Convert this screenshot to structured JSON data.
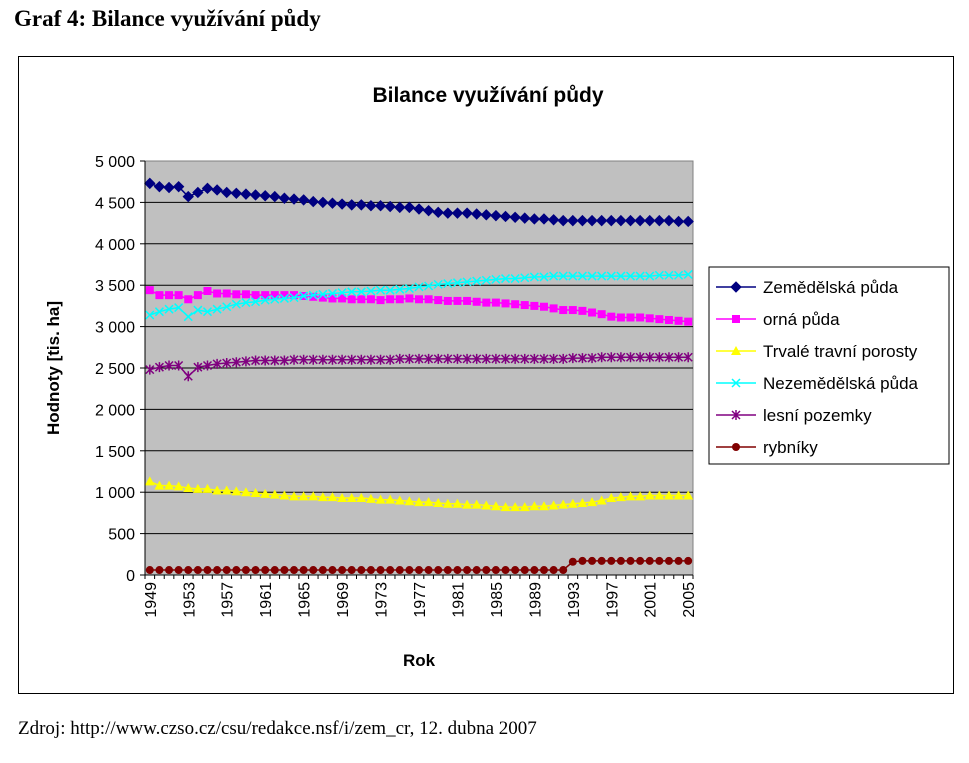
{
  "heading": "Graf 4: Bilance využívání půdy",
  "source": "Zdroj: http://www.czso.cz/csu/redakce.nsf/i/zem_cr, 12. dubna 2007",
  "chart_data": {
    "type": "line",
    "title": "Bilance využívání půdy",
    "xlabel": "Rok",
    "ylabel": "Hodnoty [tis. ha]",
    "ylim": [
      0,
      5000
    ],
    "ytick_values": [
      0,
      500,
      1000,
      1500,
      2000,
      2500,
      3000,
      3500,
      4000,
      4500,
      5000
    ],
    "ytick_labels": [
      "0",
      "500",
      "1 000",
      "1 500",
      "2 000",
      "2 500",
      "3 000",
      "3 500",
      "4 000",
      "4 500",
      "5 000"
    ],
    "x": [
      1949,
      1950,
      1951,
      1952,
      1953,
      1954,
      1955,
      1956,
      1957,
      1958,
      1959,
      1960,
      1961,
      1962,
      1963,
      1964,
      1965,
      1966,
      1967,
      1968,
      1969,
      1970,
      1971,
      1972,
      1973,
      1974,
      1975,
      1976,
      1977,
      1978,
      1979,
      1980,
      1981,
      1982,
      1983,
      1984,
      1985,
      1986,
      1987,
      1988,
      1989,
      1990,
      1991,
      1992,
      1993,
      1994,
      1995,
      1996,
      1997,
      1998,
      1999,
      2000,
      2001,
      2002,
      2003,
      2004,
      2005
    ],
    "xtick_labels": [
      "1949",
      "1953",
      "1957",
      "1961",
      "1965",
      "1969",
      "1973",
      "1977",
      "1981",
      "1985",
      "1989",
      "1993",
      "1997",
      "2001",
      "2005"
    ],
    "grid": true,
    "legend_position": "right",
    "series": [
      {
        "name": "Zemědělská půda",
        "color": "#000080",
        "marker": "diamond",
        "values": [
          4730,
          4690,
          4680,
          4690,
          4570,
          4620,
          4670,
          4650,
          4620,
          4610,
          4600,
          4590,
          4580,
          4570,
          4550,
          4540,
          4530,
          4510,
          4500,
          4490,
          4480,
          4470,
          4470,
          4460,
          4460,
          4450,
          4440,
          4440,
          4420,
          4400,
          4380,
          4370,
          4370,
          4370,
          4360,
          4350,
          4340,
          4330,
          4320,
          4310,
          4300,
          4300,
          4290,
          4280,
          4280,
          4280,
          4280,
          4280,
          4280,
          4280,
          4280,
          4280,
          4280,
          4280,
          4280,
          4270,
          4270
        ]
      },
      {
        "name": "orná půda",
        "color": "#FF00FF",
        "marker": "square",
        "values": [
          3440,
          3380,
          3380,
          3380,
          3330,
          3380,
          3430,
          3400,
          3400,
          3390,
          3390,
          3380,
          3380,
          3380,
          3380,
          3380,
          3370,
          3360,
          3350,
          3340,
          3340,
          3330,
          3330,
          3330,
          3320,
          3330,
          3330,
          3340,
          3330,
          3330,
          3320,
          3310,
          3310,
          3310,
          3300,
          3290,
          3290,
          3280,
          3270,
          3260,
          3250,
          3240,
          3220,
          3200,
          3200,
          3190,
          3170,
          3150,
          3120,
          3110,
          3110,
          3110,
          3100,
          3090,
          3080,
          3070,
          3060
        ]
      },
      {
        "name": "Trvalé travní porosty",
        "color": "#FFFF00",
        "marker": "triangle",
        "values": [
          1130,
          1080,
          1080,
          1070,
          1050,
          1040,
          1040,
          1020,
          1020,
          1010,
          1000,
          990,
          980,
          970,
          960,
          950,
          950,
          950,
          940,
          940,
          930,
          930,
          930,
          920,
          910,
          910,
          900,
          890,
          880,
          880,
          870,
          860,
          860,
          850,
          850,
          840,
          830,
          820,
          820,
          820,
          830,
          830,
          840,
          850,
          860,
          870,
          880,
          900,
          930,
          940,
          950,
          950,
          960,
          960,
          960,
          960,
          960
        ]
      },
      {
        "name": "Nezemědělská půda",
        "color": "#00FFFF",
        "marker": "x",
        "values": [
          3140,
          3180,
          3210,
          3230,
          3120,
          3200,
          3180,
          3210,
          3240,
          3270,
          3290,
          3300,
          3320,
          3330,
          3340,
          3350,
          3370,
          3380,
          3390,
          3400,
          3410,
          3420,
          3420,
          3430,
          3440,
          3440,
          3450,
          3460,
          3480,
          3490,
          3510,
          3520,
          3530,
          3540,
          3550,
          3560,
          3570,
          3580,
          3580,
          3590,
          3600,
          3600,
          3610,
          3610,
          3610,
          3610,
          3610,
          3610,
          3610,
          3610,
          3610,
          3610,
          3610,
          3620,
          3620,
          3620,
          3630
        ]
      },
      {
        "name": "lesní pozemky",
        "color": "#800080",
        "marker": "star",
        "values": [
          2480,
          2510,
          2530,
          2530,
          2400,
          2510,
          2530,
          2550,
          2560,
          2570,
          2580,
          2590,
          2590,
          2590,
          2590,
          2600,
          2600,
          2600,
          2600,
          2600,
          2600,
          2600,
          2600,
          2600,
          2600,
          2600,
          2610,
          2610,
          2610,
          2610,
          2610,
          2610,
          2610,
          2610,
          2610,
          2610,
          2610,
          2610,
          2610,
          2610,
          2610,
          2610,
          2610,
          2610,
          2620,
          2620,
          2620,
          2630,
          2630,
          2630,
          2630,
          2630,
          2630,
          2630,
          2630,
          2630,
          2630
        ]
      },
      {
        "name": "rybníky",
        "color": "#800000",
        "marker": "circle",
        "values": [
          60,
          60,
          60,
          60,
          60,
          60,
          60,
          60,
          60,
          60,
          60,
          60,
          60,
          60,
          60,
          60,
          60,
          60,
          60,
          60,
          60,
          60,
          60,
          60,
          60,
          60,
          60,
          60,
          60,
          60,
          60,
          60,
          60,
          60,
          60,
          60,
          60,
          60,
          60,
          60,
          60,
          60,
          60,
          60,
          160,
          170,
          170,
          170,
          170,
          170,
          170,
          170,
          170,
          170,
          170,
          170,
          170
        ]
      }
    ]
  }
}
